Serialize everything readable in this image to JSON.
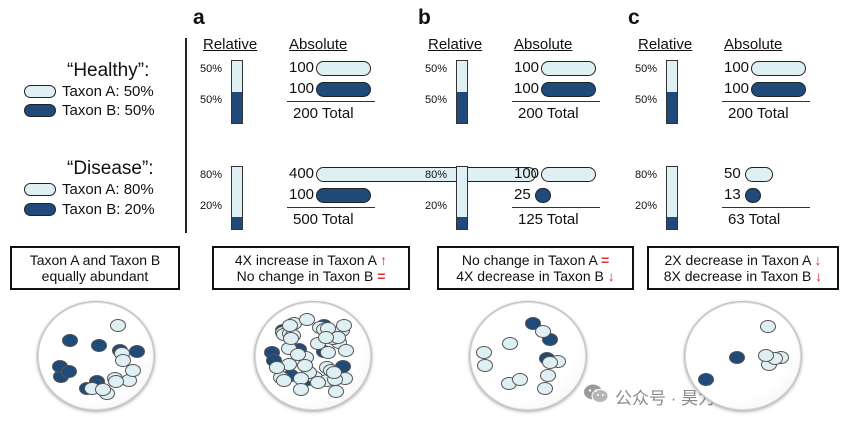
{
  "panels": [
    {
      "letter": "a",
      "relative": "Relative",
      "absolute": "Absolute",
      "healthy": {
        "top_pct": "50%",
        "bottom_pct": "50%",
        "a_num": "100",
        "b_num": "100",
        "total": "200 Total",
        "fill": 0.5
      },
      "disease": {
        "top_pct": "80%",
        "bottom_pct": "20%",
        "a_num": "400",
        "b_num": "100",
        "total": "500 Total",
        "fill": 0.2
      },
      "box": {
        "line1": "4X increase in Taxon A",
        "arrow1": "↑",
        "line2": "No change in Taxon B",
        "arrow2": "="
      }
    },
    {
      "letter": "b",
      "relative": "Relative",
      "absolute": "Absolute",
      "healthy": {
        "top_pct": "50%",
        "bottom_pct": "50%",
        "a_num": "100",
        "b_num": "100",
        "total": "200 Total",
        "fill": 0.5
      },
      "disease": {
        "top_pct": "80%",
        "bottom_pct": "20%",
        "a_num": "100",
        "b_num": "25",
        "total": "125 Total",
        "fill": 0.2
      },
      "box": {
        "line1": "No change in Taxon A",
        "arrow1": "=",
        "line2": "4X decrease in Taxon B",
        "arrow2": "↓"
      }
    },
    {
      "letter": "c",
      "relative": "Relative",
      "absolute": "Absolute",
      "healthy": {
        "top_pct": "50%",
        "bottom_pct": "50%",
        "a_num": "100",
        "b_num": "100",
        "total": "200 Total",
        "fill": 0.5
      },
      "disease": {
        "top_pct": "80%",
        "bottom_pct": "20%",
        "a_num": "50",
        "b_num": "13",
        "total": "63 Total",
        "fill": 0.2
      },
      "box": {
        "line1": "2X decrease in Taxon A",
        "arrow1": "↓",
        "line2": "8X decrease in Taxon B",
        "arrow2": "↓"
      }
    }
  ],
  "legend": {
    "healthy_title": "“Healthy”:",
    "healthy_a": "Taxon A: 50%",
    "healthy_b": "Taxon B: 50%",
    "disease_title": "“Disease”:",
    "disease_a": "Taxon A: 80%",
    "disease_b": "Taxon B: 20%"
  },
  "left_box": {
    "line1": "Taxon A and Taxon B",
    "line2": "equally abundant"
  },
  "watermark": {
    "text": "公众号 · 昊为泰生物",
    "icon": "wechat-icon"
  },
  "colors": {
    "taxon_a": "#dff0f5",
    "taxon_b": "#1f4a7a",
    "arrow": "#e03030"
  }
}
